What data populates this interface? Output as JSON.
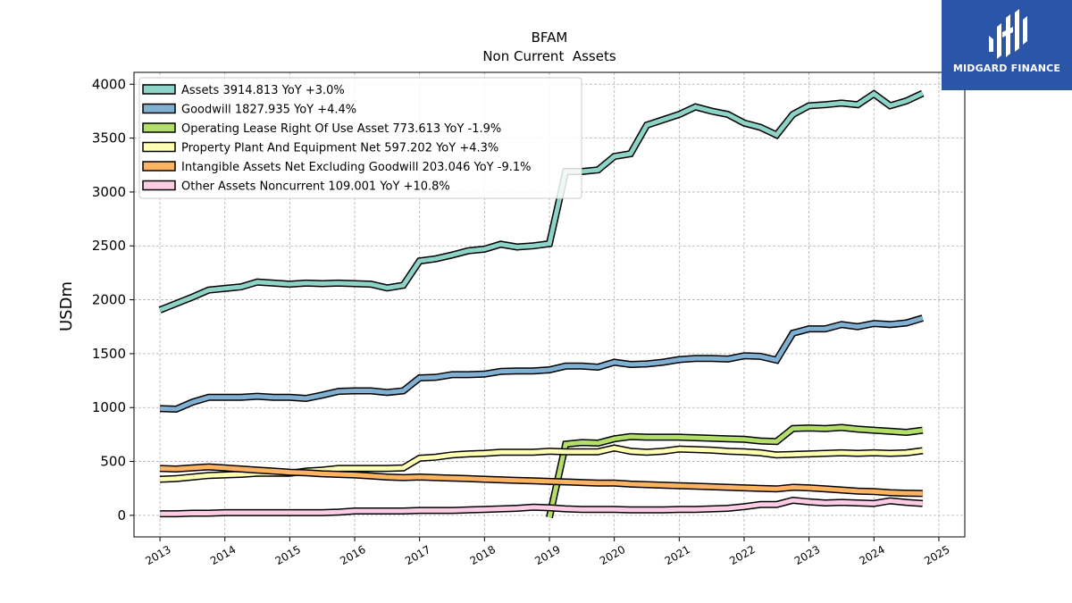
{
  "brand": {
    "name": "MIDGARD FINANCE",
    "color": "#2b56a8"
  },
  "chart_data": {
    "type": "line",
    "title": "BFAM",
    "subtitle": "Non Current  Assets",
    "xlabel": "",
    "ylabel": "USDm",
    "xlim": [
      2012.6,
      2025.4
    ],
    "ylim": [
      -200,
      4110
    ],
    "x_ticks": [
      2013,
      2014,
      2015,
      2016,
      2017,
      2018,
      2019,
      2020,
      2021,
      2022,
      2023,
      2024,
      2025
    ],
    "y_ticks": [
      0,
      500,
      1000,
      1500,
      2000,
      2500,
      3000,
      3500,
      4000
    ],
    "grid": true,
    "legend_position": "top-left",
    "series": [
      {
        "name": "Assets  3914.813 YoY +3.0%",
        "color": "#8dd3c7",
        "points": [
          [
            2013.0,
            1905
          ],
          [
            2013.25,
            1965
          ],
          [
            2013.5,
            2025
          ],
          [
            2013.75,
            2090
          ],
          [
            2014.0,
            2105
          ],
          [
            2014.25,
            2120
          ],
          [
            2014.5,
            2165
          ],
          [
            2014.75,
            2155
          ],
          [
            2015.0,
            2145
          ],
          [
            2015.25,
            2155
          ],
          [
            2015.5,
            2150
          ],
          [
            2015.75,
            2155
          ],
          [
            2016.0,
            2150
          ],
          [
            2016.25,
            2145
          ],
          [
            2016.5,
            2110
          ],
          [
            2016.75,
            2135
          ],
          [
            2017.0,
            2360
          ],
          [
            2017.25,
            2380
          ],
          [
            2017.5,
            2415
          ],
          [
            2017.75,
            2455
          ],
          [
            2018.0,
            2470
          ],
          [
            2018.25,
            2515
          ],
          [
            2018.5,
            2490
          ],
          [
            2018.75,
            2500
          ],
          [
            2019.0,
            2520
          ],
          [
            2019.25,
            3190
          ],
          [
            2019.5,
            3190
          ],
          [
            2019.75,
            3205
          ],
          [
            2020.0,
            3330
          ],
          [
            2020.25,
            3355
          ],
          [
            2020.5,
            3620
          ],
          [
            2020.75,
            3670
          ],
          [
            2021.0,
            3720
          ],
          [
            2021.25,
            3790
          ],
          [
            2021.5,
            3750
          ],
          [
            2021.75,
            3720
          ],
          [
            2022.0,
            3640
          ],
          [
            2022.25,
            3600
          ],
          [
            2022.5,
            3530
          ],
          [
            2022.75,
            3720
          ],
          [
            2023.0,
            3800
          ],
          [
            2023.25,
            3810
          ],
          [
            2023.5,
            3825
          ],
          [
            2023.75,
            3810
          ],
          [
            2024.0,
            3910
          ],
          [
            2024.25,
            3800
          ],
          [
            2024.5,
            3845
          ],
          [
            2024.75,
            3915
          ]
        ]
      },
      {
        "name": "Goodwill  1827.935 YoY +4.4%",
        "color": "#80b1d3",
        "points": [
          [
            2013.0,
            990
          ],
          [
            2013.25,
            985
          ],
          [
            2013.5,
            1050
          ],
          [
            2013.75,
            1095
          ],
          [
            2014.0,
            1095
          ],
          [
            2014.25,
            1095
          ],
          [
            2014.5,
            1105
          ],
          [
            2014.75,
            1095
          ],
          [
            2015.0,
            1095
          ],
          [
            2015.25,
            1085
          ],
          [
            2015.5,
            1115
          ],
          [
            2015.75,
            1150
          ],
          [
            2016.0,
            1155
          ],
          [
            2016.25,
            1155
          ],
          [
            2016.5,
            1140
          ],
          [
            2016.75,
            1155
          ],
          [
            2017.0,
            1275
          ],
          [
            2017.25,
            1280
          ],
          [
            2017.5,
            1305
          ],
          [
            2017.75,
            1305
          ],
          [
            2018.0,
            1310
          ],
          [
            2018.25,
            1335
          ],
          [
            2018.5,
            1340
          ],
          [
            2018.75,
            1340
          ],
          [
            2019.0,
            1350
          ],
          [
            2019.25,
            1385
          ],
          [
            2019.5,
            1385
          ],
          [
            2019.75,
            1375
          ],
          [
            2020.0,
            1420
          ],
          [
            2020.25,
            1400
          ],
          [
            2020.5,
            1405
          ],
          [
            2020.75,
            1420
          ],
          [
            2021.0,
            1445
          ],
          [
            2021.25,
            1455
          ],
          [
            2021.5,
            1455
          ],
          [
            2021.75,
            1450
          ],
          [
            2022.0,
            1480
          ],
          [
            2022.25,
            1475
          ],
          [
            2022.5,
            1440
          ],
          [
            2022.75,
            1690
          ],
          [
            2023.0,
            1730
          ],
          [
            2023.25,
            1730
          ],
          [
            2023.5,
            1770
          ],
          [
            2023.75,
            1750
          ],
          [
            2024.0,
            1780
          ],
          [
            2024.25,
            1770
          ],
          [
            2024.5,
            1785
          ],
          [
            2024.75,
            1830
          ]
        ]
      },
      {
        "name": "Operating Lease Right Of Use Asset  773.613 YoY -1.9%",
        "color": "#b3de69",
        "points": [
          [
            2019.0,
            -20
          ],
          [
            2019.25,
            660
          ],
          [
            2019.5,
            675
          ],
          [
            2019.75,
            670
          ],
          [
            2020.0,
            710
          ],
          [
            2020.25,
            730
          ],
          [
            2020.5,
            725
          ],
          [
            2020.75,
            725
          ],
          [
            2021.0,
            725
          ],
          [
            2021.25,
            720
          ],
          [
            2021.5,
            715
          ],
          [
            2021.75,
            710
          ],
          [
            2022.0,
            705
          ],
          [
            2022.25,
            690
          ],
          [
            2022.5,
            685
          ],
          [
            2022.75,
            805
          ],
          [
            2023.0,
            810
          ],
          [
            2023.25,
            805
          ],
          [
            2023.5,
            815
          ],
          [
            2023.75,
            800
          ],
          [
            2024.0,
            790
          ],
          [
            2024.25,
            780
          ],
          [
            2024.5,
            770
          ],
          [
            2024.75,
            790
          ]
        ]
      },
      {
        "name": "Property Plant And Equipment Net  597.202 YoY +4.3%",
        "color": "#ffffb3",
        "points": [
          [
            2013.0,
            335
          ],
          [
            2013.25,
            340
          ],
          [
            2013.5,
            355
          ],
          [
            2013.75,
            370
          ],
          [
            2014.0,
            375
          ],
          [
            2014.25,
            380
          ],
          [
            2014.5,
            390
          ],
          [
            2014.75,
            390
          ],
          [
            2015.0,
            390
          ],
          [
            2015.25,
            410
          ],
          [
            2015.5,
            420
          ],
          [
            2015.75,
            435
          ],
          [
            2016.0,
            435
          ],
          [
            2016.25,
            435
          ],
          [
            2016.5,
            435
          ],
          [
            2016.75,
            440
          ],
          [
            2017.0,
            530
          ],
          [
            2017.25,
            540
          ],
          [
            2017.5,
            560
          ],
          [
            2017.75,
            570
          ],
          [
            2018.0,
            575
          ],
          [
            2018.25,
            585
          ],
          [
            2018.5,
            585
          ],
          [
            2018.75,
            585
          ],
          [
            2019.0,
            595
          ],
          [
            2019.25,
            590
          ],
          [
            2019.5,
            590
          ],
          [
            2019.75,
            590
          ],
          [
            2020.0,
            625
          ],
          [
            2020.25,
            595
          ],
          [
            2020.5,
            585
          ],
          [
            2020.75,
            595
          ],
          [
            2021.0,
            615
          ],
          [
            2021.25,
            610
          ],
          [
            2021.5,
            605
          ],
          [
            2021.75,
            595
          ],
          [
            2022.0,
            590
          ],
          [
            2022.25,
            580
          ],
          [
            2022.5,
            560
          ],
          [
            2022.75,
            565
          ],
          [
            2023.0,
            570
          ],
          [
            2023.25,
            575
          ],
          [
            2023.5,
            580
          ],
          [
            2023.75,
            575
          ],
          [
            2024.0,
            580
          ],
          [
            2024.25,
            575
          ],
          [
            2024.5,
            580
          ],
          [
            2024.75,
            600
          ]
        ]
      },
      {
        "name": "Intangible Assets Net Excluding Goodwill  203.046 YoY -9.1%",
        "color": "#fdb462",
        "points": [
          [
            2013.0,
            435
          ],
          [
            2013.25,
            430
          ],
          [
            2013.5,
            440
          ],
          [
            2013.75,
            450
          ],
          [
            2014.0,
            440
          ],
          [
            2014.25,
            430
          ],
          [
            2014.5,
            420
          ],
          [
            2014.75,
            410
          ],
          [
            2015.0,
            400
          ],
          [
            2015.25,
            395
          ],
          [
            2015.5,
            385
          ],
          [
            2015.75,
            380
          ],
          [
            2016.0,
            375
          ],
          [
            2016.25,
            365
          ],
          [
            2016.5,
            355
          ],
          [
            2016.75,
            350
          ],
          [
            2017.0,
            355
          ],
          [
            2017.25,
            350
          ],
          [
            2017.5,
            345
          ],
          [
            2017.75,
            340
          ],
          [
            2018.0,
            335
          ],
          [
            2018.25,
            330
          ],
          [
            2018.5,
            325
          ],
          [
            2018.75,
            320
          ],
          [
            2019.0,
            315
          ],
          [
            2019.25,
            310
          ],
          [
            2019.5,
            305
          ],
          [
            2019.75,
            300
          ],
          [
            2020.0,
            300
          ],
          [
            2020.25,
            290
          ],
          [
            2020.5,
            285
          ],
          [
            2020.75,
            280
          ],
          [
            2021.0,
            275
          ],
          [
            2021.25,
            270
          ],
          [
            2021.5,
            265
          ],
          [
            2021.75,
            260
          ],
          [
            2022.0,
            255
          ],
          [
            2022.25,
            250
          ],
          [
            2022.5,
            245
          ],
          [
            2022.75,
            260
          ],
          [
            2023.0,
            255
          ],
          [
            2023.25,
            245
          ],
          [
            2023.5,
            235
          ],
          [
            2023.75,
            225
          ],
          [
            2024.0,
            220
          ],
          [
            2024.25,
            210
          ],
          [
            2024.5,
            205
          ],
          [
            2024.75,
            203
          ]
        ]
      },
      {
        "name": "Other Assets Noncurrent  109.001 YoY +10.8%",
        "color": "#fccde5",
        "points": [
          [
            2013.0,
            15
          ],
          [
            2013.25,
            15
          ],
          [
            2013.5,
            20
          ],
          [
            2013.75,
            20
          ],
          [
            2014.0,
            25
          ],
          [
            2014.25,
            25
          ],
          [
            2014.5,
            25
          ],
          [
            2014.75,
            25
          ],
          [
            2015.0,
            25
          ],
          [
            2015.25,
            25
          ],
          [
            2015.5,
            25
          ],
          [
            2015.75,
            30
          ],
          [
            2016.0,
            40
          ],
          [
            2016.25,
            40
          ],
          [
            2016.5,
            40
          ],
          [
            2016.75,
            40
          ],
          [
            2017.0,
            45
          ],
          [
            2017.25,
            45
          ],
          [
            2017.5,
            45
          ],
          [
            2017.75,
            50
          ],
          [
            2018.0,
            55
          ],
          [
            2018.25,
            60
          ],
          [
            2018.5,
            65
          ],
          [
            2018.75,
            75
          ],
          [
            2019.0,
            70
          ],
          [
            2019.25,
            60
          ],
          [
            2019.5,
            55
          ],
          [
            2019.75,
            55
          ],
          [
            2020.0,
            55
          ],
          [
            2020.25,
            50
          ],
          [
            2020.5,
            50
          ],
          [
            2020.75,
            50
          ],
          [
            2021.0,
            55
          ],
          [
            2021.25,
            55
          ],
          [
            2021.5,
            60
          ],
          [
            2021.75,
            65
          ],
          [
            2022.0,
            80
          ],
          [
            2022.25,
            100
          ],
          [
            2022.5,
            100
          ],
          [
            2022.75,
            140
          ],
          [
            2023.0,
            125
          ],
          [
            2023.25,
            115
          ],
          [
            2023.5,
            120
          ],
          [
            2023.75,
            115
          ],
          [
            2024.0,
            110
          ],
          [
            2024.25,
            135
          ],
          [
            2024.5,
            120
          ],
          [
            2024.75,
            110
          ]
        ]
      }
    ]
  }
}
